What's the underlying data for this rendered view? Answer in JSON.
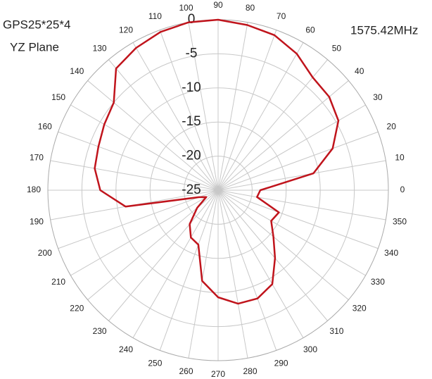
{
  "chart_data": {
    "type": "polar",
    "title": "GPS25*25*4",
    "subtitle": "YZ Plane",
    "annotation": "1575.42MHz",
    "categories": [
      0,
      10,
      20,
      30,
      40,
      50,
      60,
      70,
      80,
      90,
      100,
      110,
      120,
      130,
      140,
      150,
      160,
      170,
      180,
      190,
      200,
      210,
      220,
      230,
      240,
      250,
      260,
      270,
      280,
      290,
      300,
      310,
      320,
      330,
      340,
      350
    ],
    "values": [
      -18.8,
      -10.8,
      -7.1,
      -4.6,
      -3.7,
      -3.4,
      -1.9,
      -0.8,
      -0.4,
      0,
      0,
      -0.3,
      -0.9,
      -1.7,
      -5,
      -5.7,
      -6.3,
      -6.6,
      -7.7,
      -11.2,
      -22,
      -23,
      -21,
      -18.5,
      -17,
      -16.5,
      -11.5,
      -9.3,
      -8.1,
      -8.1,
      -9.1,
      -12,
      -14.4,
      -16,
      -15.5,
      -19.2
    ],
    "color": "#c0141c",
    "rlim": [
      -25,
      0
    ],
    "rticks": [
      -25,
      -20,
      -15,
      -10,
      -5,
      0
    ],
    "grid": true
  }
}
